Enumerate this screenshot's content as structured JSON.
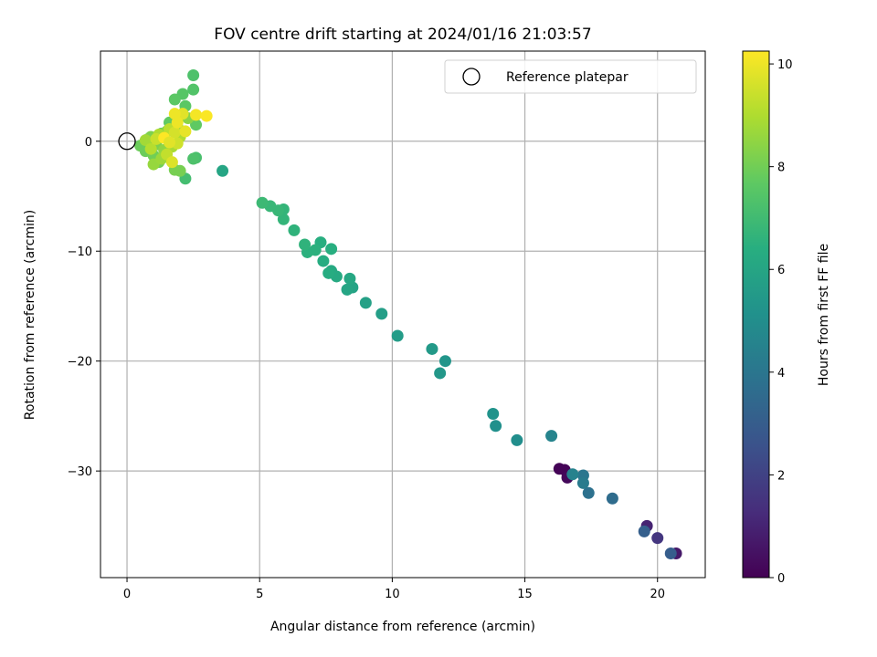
{
  "chart_data": {
    "type": "scatter",
    "title": "FOV centre drift starting at 2024/01/16 21:03:57",
    "xlabel": "Angular distance from reference (arcmin)",
    "ylabel": "Rotation from reference (arcmin)",
    "xlim": [
      -1.0,
      21.8
    ],
    "ylim": [
      -39.7,
      8.2
    ],
    "xticks": [
      0,
      5,
      10,
      15,
      20
    ],
    "yticks": [
      0,
      -10,
      -20,
      -30
    ],
    "grid": true,
    "legend": {
      "position": "top-right",
      "entries": [
        "Reference platepar"
      ]
    },
    "reference_point": {
      "x": 0,
      "y": 0,
      "marker": "open-circle"
    },
    "colorbar": {
      "label": "Hours from first FF file",
      "colormap": "viridis",
      "range": [
        0,
        10.25
      ],
      "ticks": [
        0,
        2,
        4,
        6,
        8,
        10
      ]
    },
    "points": [
      {
        "x": 16.3,
        "y": -29.8,
        "h": 0.05
      },
      {
        "x": 16.5,
        "y": -29.9,
        "h": 0.1
      },
      {
        "x": 16.6,
        "y": -30.6,
        "h": 0.2
      },
      {
        "x": 20.7,
        "y": -37.5,
        "h": 0.7
      },
      {
        "x": 19.6,
        "y": -35.0,
        "h": 1.0
      },
      {
        "x": 20.0,
        "y": -36.1,
        "h": 1.6
      },
      {
        "x": 20.5,
        "y": -37.5,
        "h": 3.0
      },
      {
        "x": 19.5,
        "y": -35.5,
        "h": 3.1
      },
      {
        "x": 18.3,
        "y": -32.5,
        "h": 3.6
      },
      {
        "x": 17.4,
        "y": -32.0,
        "h": 3.8
      },
      {
        "x": 17.2,
        "y": -30.4,
        "h": 4.0
      },
      {
        "x": 17.2,
        "y": -31.1,
        "h": 4.2
      },
      {
        "x": 16.8,
        "y": -30.3,
        "h": 4.5
      },
      {
        "x": 16.0,
        "y": -26.8,
        "h": 4.6
      },
      {
        "x": 14.7,
        "y": -27.2,
        "h": 5.0
      },
      {
        "x": 13.9,
        "y": -25.9,
        "h": 5.1
      },
      {
        "x": 13.8,
        "y": -24.8,
        "h": 5.2
      },
      {
        "x": 12.0,
        "y": -20.0,
        "h": 5.3
      },
      {
        "x": 11.8,
        "y": -21.1,
        "h": 5.4
      },
      {
        "x": 11.5,
        "y": -18.9,
        "h": 5.5
      },
      {
        "x": 10.2,
        "y": -17.7,
        "h": 5.6
      },
      {
        "x": 9.6,
        "y": -15.7,
        "h": 5.7
      },
      {
        "x": 9.0,
        "y": -14.7,
        "h": 5.8
      },
      {
        "x": 8.5,
        "y": -13.3,
        "h": 5.9
      },
      {
        "x": 8.3,
        "y": -13.5,
        "h": 6.0
      },
      {
        "x": 8.4,
        "y": -12.5,
        "h": 6.1
      },
      {
        "x": 7.9,
        "y": -12.3,
        "h": 6.2
      },
      {
        "x": 7.7,
        "y": -11.8,
        "h": 6.2
      },
      {
        "x": 7.6,
        "y": -12.0,
        "h": 6.3
      },
      {
        "x": 7.4,
        "y": -10.9,
        "h": 6.3
      },
      {
        "x": 7.7,
        "y": -9.8,
        "h": 6.4
      },
      {
        "x": 7.3,
        "y": -9.2,
        "h": 6.4
      },
      {
        "x": 7.1,
        "y": -9.9,
        "h": 6.5
      },
      {
        "x": 6.8,
        "y": -10.1,
        "h": 6.5
      },
      {
        "x": 6.7,
        "y": -9.4,
        "h": 6.6
      },
      {
        "x": 6.3,
        "y": -8.1,
        "h": 6.6
      },
      {
        "x": 5.9,
        "y": -7.1,
        "h": 6.7
      },
      {
        "x": 5.9,
        "y": -6.2,
        "h": 6.7
      },
      {
        "x": 5.7,
        "y": -6.3,
        "h": 6.8
      },
      {
        "x": 5.4,
        "y": -5.9,
        "h": 6.8
      },
      {
        "x": 5.1,
        "y": -5.6,
        "h": 6.9
      },
      {
        "x": 3.6,
        "y": -2.7,
        "h": 6.0
      },
      {
        "x": 2.2,
        "y": -3.4,
        "h": 7.1
      },
      {
        "x": 2.6,
        "y": -1.5,
        "h": 7.2
      },
      {
        "x": 2.5,
        "y": -1.6,
        "h": 7.3
      },
      {
        "x": 2.5,
        "y": 6.0,
        "h": 7.3
      },
      {
        "x": 2.5,
        "y": 4.7,
        "h": 7.4
      },
      {
        "x": 2.1,
        "y": 4.3,
        "h": 7.5
      },
      {
        "x": 1.8,
        "y": 3.8,
        "h": 7.6
      },
      {
        "x": 2.2,
        "y": 3.2,
        "h": 7.6
      },
      {
        "x": 2.6,
        "y": 1.5,
        "h": 7.7
      },
      {
        "x": 1.6,
        "y": 1.7,
        "h": 7.7
      },
      {
        "x": 1.3,
        "y": 0.7,
        "h": 7.8
      },
      {
        "x": 0.8,
        "y": 0.2,
        "h": 7.8
      },
      {
        "x": 0.5,
        "y": -0.4,
        "h": 7.9
      },
      {
        "x": 0.7,
        "y": -0.9,
        "h": 7.9
      },
      {
        "x": 1.0,
        "y": -1.3,
        "h": 8.0
      },
      {
        "x": 1.2,
        "y": -1.9,
        "h": 8.0
      },
      {
        "x": 1.8,
        "y": -2.6,
        "h": 8.1
      },
      {
        "x": 2.0,
        "y": -2.7,
        "h": 8.1
      },
      {
        "x": 1.1,
        "y": -0.3,
        "h": 8.2
      },
      {
        "x": 0.9,
        "y": 0.4,
        "h": 8.2
      },
      {
        "x": 1.5,
        "y": 0.9,
        "h": 8.3
      },
      {
        "x": 1.9,
        "y": 1.3,
        "h": 8.3
      },
      {
        "x": 2.3,
        "y": 2.1,
        "h": 8.4
      },
      {
        "x": 1.4,
        "y": -0.8,
        "h": 8.5
      },
      {
        "x": 1.0,
        "y": -2.1,
        "h": 8.6
      },
      {
        "x": 1.3,
        "y": -1.6,
        "h": 8.7
      },
      {
        "x": 0.7,
        "y": 0.1,
        "h": 8.8
      },
      {
        "x": 1.7,
        "y": -0.5,
        "h": 8.9
      },
      {
        "x": 1.2,
        "y": 0.6,
        "h": 9.0
      },
      {
        "x": 2.0,
        "y": 0.4,
        "h": 9.0
      },
      {
        "x": 0.9,
        "y": -0.7,
        "h": 9.1
      },
      {
        "x": 1.6,
        "y": 1.1,
        "h": 9.2
      },
      {
        "x": 1.5,
        "y": -1.2,
        "h": 9.3
      },
      {
        "x": 1.1,
        "y": 0.2,
        "h": 9.4
      },
      {
        "x": 1.9,
        "y": -0.2,
        "h": 9.5
      },
      {
        "x": 1.8,
        "y": 0.8,
        "h": 9.6
      },
      {
        "x": 1.7,
        "y": -1.9,
        "h": 9.7
      },
      {
        "x": 2.1,
        "y": 2.5,
        "h": 9.8
      },
      {
        "x": 2.2,
        "y": 0.9,
        "h": 9.9
      },
      {
        "x": 1.8,
        "y": 2.5,
        "h": 10.0
      },
      {
        "x": 2.6,
        "y": 2.4,
        "h": 10.1
      },
      {
        "x": 3.0,
        "y": 2.3,
        "h": 10.2
      },
      {
        "x": 1.4,
        "y": 0.3,
        "h": 10.25
      },
      {
        "x": 1.9,
        "y": 1.7,
        "h": 10.0
      },
      {
        "x": 1.6,
        "y": -0.1,
        "h": 9.8
      }
    ]
  }
}
